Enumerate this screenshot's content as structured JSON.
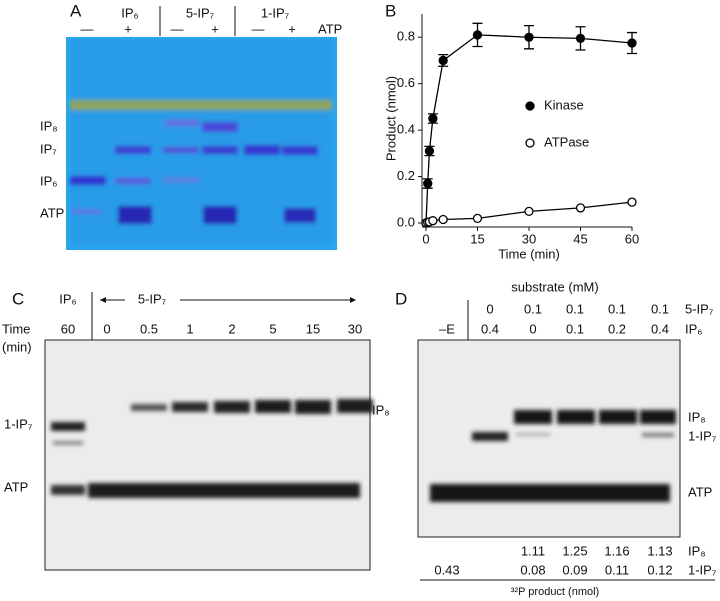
{
  "panel_a": {
    "letter": "A",
    "groups": [
      "IP₆",
      "5-IP₇",
      "1-IP₇"
    ],
    "lane_signs": [
      "—",
      "+",
      "—",
      "+",
      "—",
      "+"
    ],
    "row_label": "ATP",
    "band_labels": [
      "IP₈",
      "IP₇",
      "IP₆",
      "ATP"
    ]
  },
  "chart_data": {
    "type": "line",
    "panel": "B",
    "x_label": "Time (min)",
    "y_label": "Product (nmol)",
    "x": [
      0,
      0.5,
      1,
      2,
      5,
      15,
      30,
      45,
      60
    ],
    "series": [
      {
        "name": "Kinase",
        "color": "#000000",
        "marker": "filled",
        "values": [
          0,
          0.17,
          0.31,
          0.45,
          0.7,
          0.81,
          0.8,
          0.795,
          0.775
        ],
        "errors": [
          0,
          0.02,
          0.02,
          0.02,
          0.025,
          0.05,
          0.05,
          0.05,
          0.045
        ]
      },
      {
        "name": "ATPase",
        "color": "#000000",
        "marker": "open",
        "values": [
          0,
          0.003,
          0.005,
          0.01,
          0.015,
          0.02,
          0.05,
          0.065,
          0.09
        ]
      }
    ],
    "xlim": [
      0,
      60
    ],
    "xticks": [
      0,
      15,
      30,
      45,
      60
    ],
    "ylim": [
      0,
      0.9
    ],
    "yticks": [
      {
        "value": 0,
        "label": "0.0"
      },
      0.2,
      0.4,
      0.6,
      0.8
    ],
    "grid": false,
    "legend": "center"
  },
  "panel_c": {
    "letter": "C",
    "reference": "IP₆",
    "substrate": "5-IP₇",
    "time_label": "Time",
    "time_unit": "(min)",
    "times": [
      60,
      0,
      0.5,
      1,
      2,
      5,
      15,
      30
    ],
    "left_labels": [
      "1-IP₇",
      "ATP"
    ],
    "right_labels": [
      "IP₈"
    ]
  },
  "panel_d": {
    "letter": "D",
    "header": "substrate (mM)",
    "no_enzyme": "–E",
    "rows": [
      {
        "label": "5-IP₇",
        "values": [
          0,
          0.1,
          0.1,
          0.1,
          0.1
        ]
      },
      {
        "label": "IP₆",
        "values": [
          0.4,
          0,
          0.1,
          0.2,
          0.4
        ]
      }
    ],
    "right_labels": [
      "IP₈",
      "1-IP₇",
      "ATP"
    ],
    "table": [
      {
        "label": "IP₈",
        "values": [
          null,
          1.11,
          1.25,
          1.16,
          1.13
        ]
      },
      {
        "label": "1-IP₇",
        "values": [
          0.43,
          0.08,
          0.09,
          0.11,
          0.12
        ]
      }
    ],
    "footer": "³²P product (nmol)"
  }
}
